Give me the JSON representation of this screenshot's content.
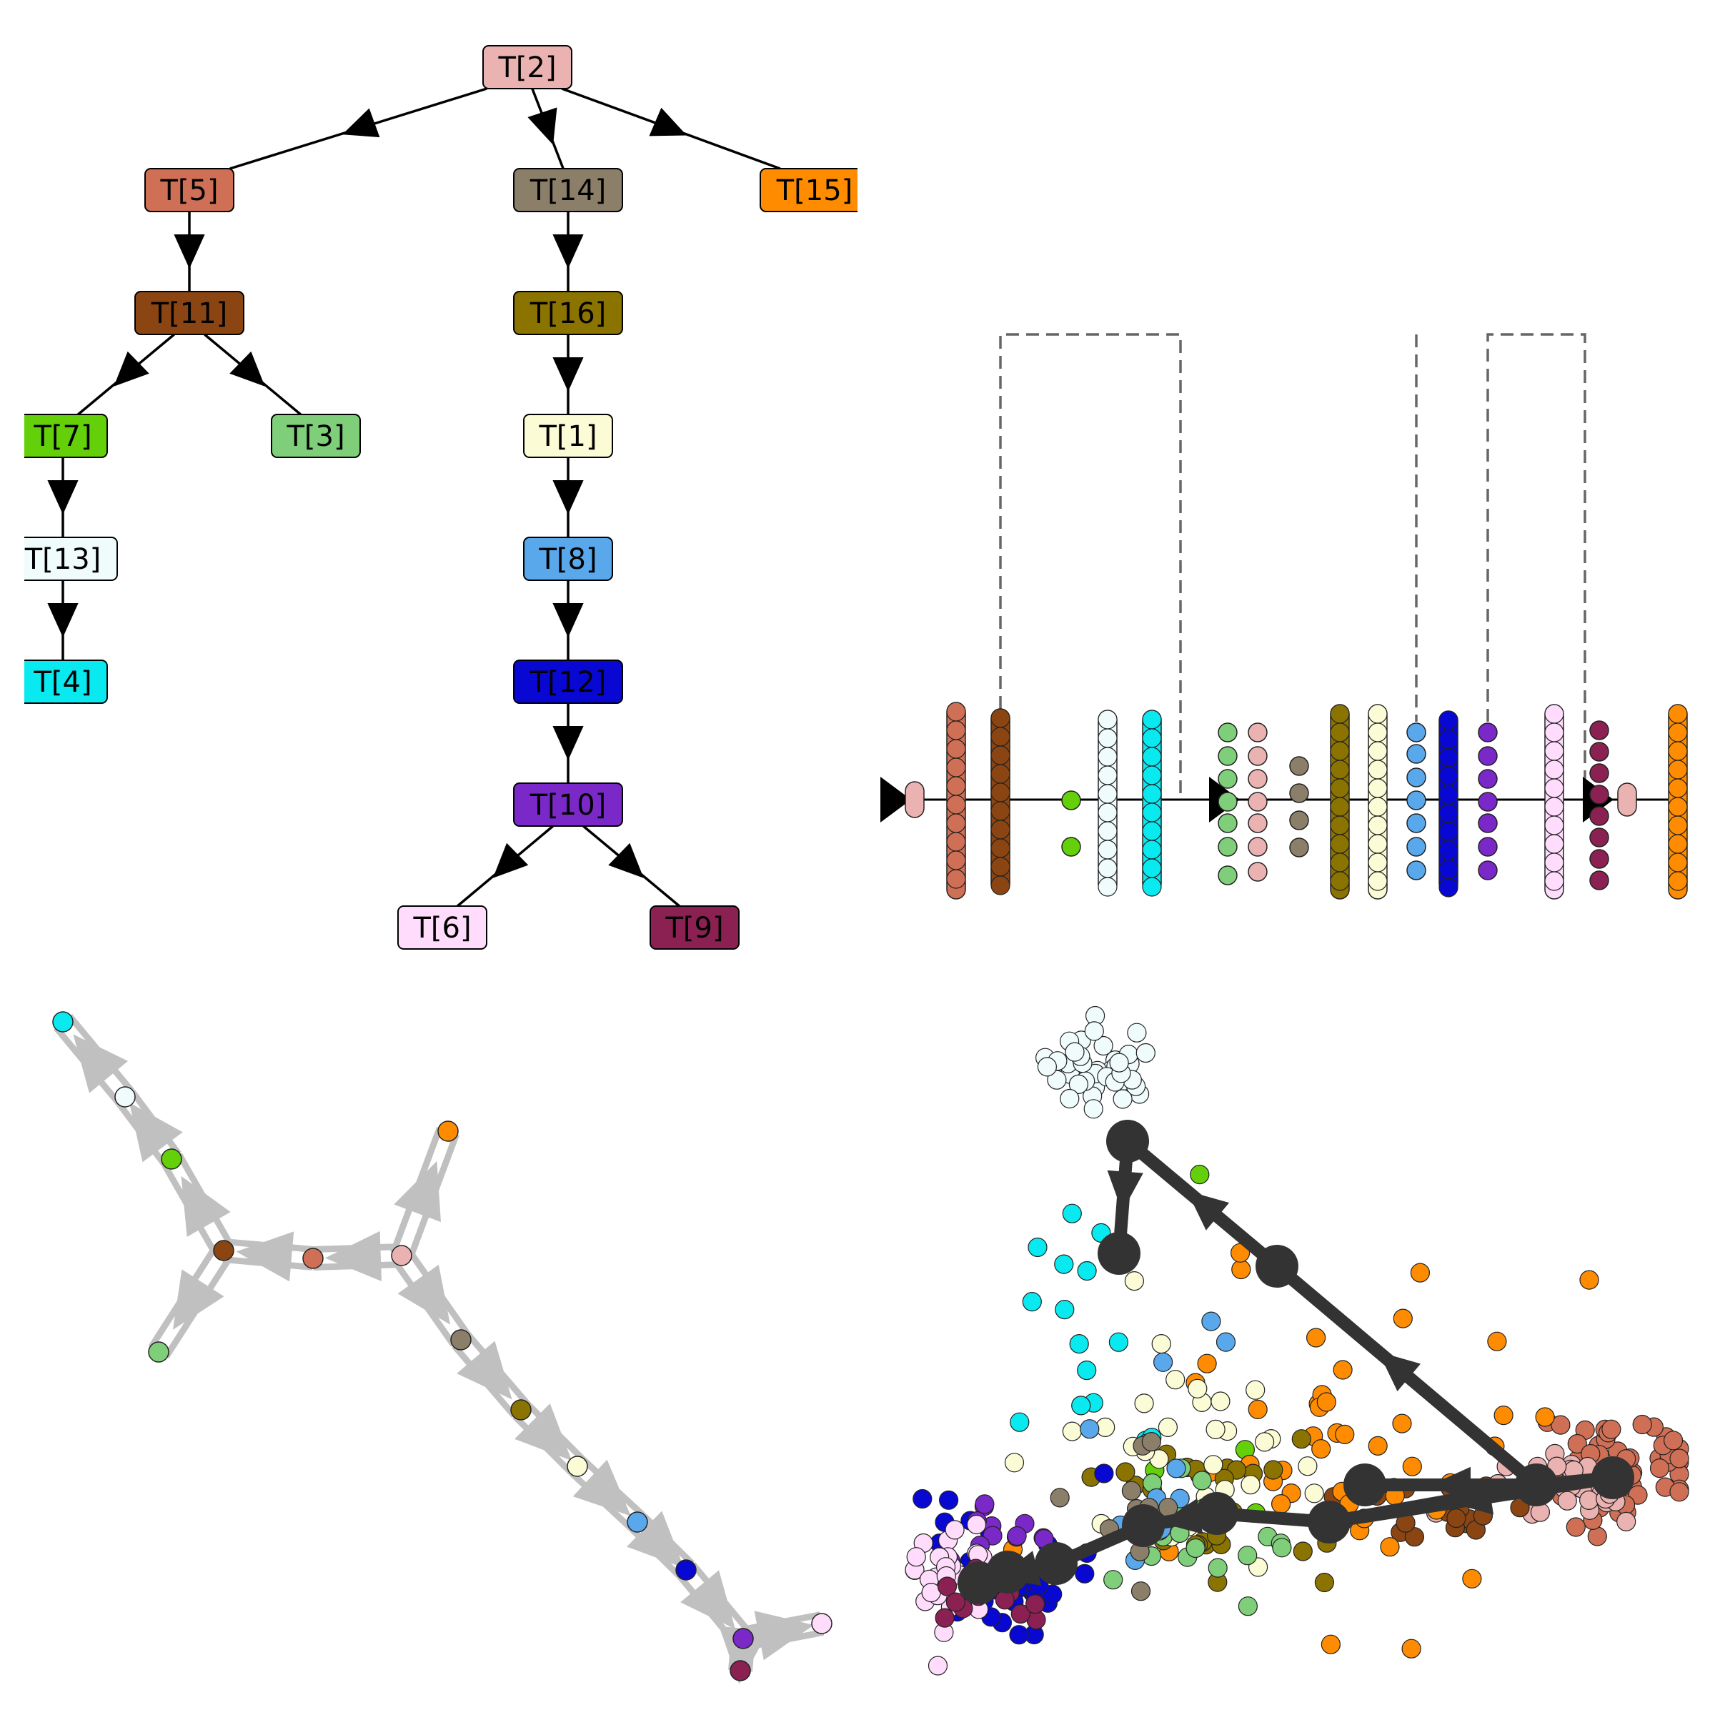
{
  "colors": {
    "T1": "#fbfbd6",
    "T2": "#eab2b0",
    "T3": "#7fcf7a",
    "T4": "#08eaf0",
    "T5": "#cf6f55",
    "T6": "#ffdcfc",
    "T7": "#64d00a",
    "T8": "#5aa8ec",
    "T9": "#8a2152",
    "T10": "#7a28c8",
    "T11": "#8b4513",
    "T12": "#0808d2",
    "T13": "#f0fbfb",
    "T14": "#8b7f6a",
    "T15": "#ff8c00",
    "T16": "#8b7300",
    "edge": "#000000",
    "trajectory_edge": "#c0c0c0",
    "graph_edge": "#333333",
    "dashed": "#666666"
  },
  "tree": {
    "nodes": [
      {
        "id": "T2",
        "label": "T[2]"
      },
      {
        "id": "T5",
        "label": "T[5]"
      },
      {
        "id": "T14",
        "label": "T[14]"
      },
      {
        "id": "T15",
        "label": "T[15]"
      },
      {
        "id": "T11",
        "label": "T[11]"
      },
      {
        "id": "T16",
        "label": "T[16]"
      },
      {
        "id": "T7",
        "label": "T[7]"
      },
      {
        "id": "T3",
        "label": "T[3]"
      },
      {
        "id": "T1",
        "label": "T[1]"
      },
      {
        "id": "T13",
        "label": "T[13]"
      },
      {
        "id": "T8",
        "label": "T[8]"
      },
      {
        "id": "T4",
        "label": "T[4]"
      },
      {
        "id": "T12",
        "label": "T[12]"
      },
      {
        "id": "T10",
        "label": "T[10]"
      },
      {
        "id": "T6",
        "label": "T[6]"
      },
      {
        "id": "T9",
        "label": "T[9]"
      }
    ],
    "edges": [
      [
        "T2",
        "T5"
      ],
      [
        "T2",
        "T14"
      ],
      [
        "T2",
        "T15"
      ],
      [
        "T5",
        "T11"
      ],
      [
        "T11",
        "T7"
      ],
      [
        "T11",
        "T3"
      ],
      [
        "T7",
        "T13"
      ],
      [
        "T13",
        "T4"
      ],
      [
        "T14",
        "T16"
      ],
      [
        "T16",
        "T1"
      ],
      [
        "T1",
        "T8"
      ],
      [
        "T8",
        "T12"
      ],
      [
        "T12",
        "T10"
      ],
      [
        "T10",
        "T6"
      ],
      [
        "T10",
        "T9"
      ]
    ]
  },
  "linear_view": {
    "columns": [
      {
        "id": "T2",
        "count": 1
      },
      {
        "id": "T5",
        "count": 9
      },
      {
        "id": "T11",
        "count": 9
      },
      {
        "id": "T7",
        "count": 2
      },
      {
        "id": "T13",
        "count": 9
      },
      {
        "id": "T4",
        "count": 9
      },
      {
        "id": "T3",
        "count": 7
      },
      {
        "id": "T2",
        "count": 6
      },
      {
        "id": "T14",
        "count": 4
      },
      {
        "id": "T16",
        "count": 9
      },
      {
        "id": "T1",
        "count": 9
      },
      {
        "id": "T8",
        "count": 7
      },
      {
        "id": "T12",
        "count": 9
      },
      {
        "id": "T10",
        "count": 7
      },
      {
        "id": "T6",
        "count": 9
      },
      {
        "id": "T9",
        "count": 7
      },
      {
        "id": "T2",
        "count": 1
      },
      {
        "id": "T15",
        "count": 9
      }
    ]
  },
  "trajectory": {
    "nodes": [
      "T4",
      "T13",
      "T7",
      "T11",
      "T3",
      "T5",
      "T2",
      "T15",
      "T14",
      "T16",
      "T1",
      "T8",
      "T12",
      "T10",
      "T6",
      "T9"
    ]
  },
  "embedding": {
    "clusters": [
      {
        "id": "T13",
        "n": 40
      },
      {
        "id": "T4",
        "n": 18
      },
      {
        "id": "T7",
        "n": 4
      },
      {
        "id": "T5",
        "n": 55
      },
      {
        "id": "T2",
        "n": 30
      },
      {
        "id": "T11",
        "n": 20
      },
      {
        "id": "T15",
        "n": 45
      },
      {
        "id": "T16",
        "n": 30
      },
      {
        "id": "T1",
        "n": 30
      },
      {
        "id": "T3",
        "n": 18
      },
      {
        "id": "T8",
        "n": 10
      },
      {
        "id": "T14",
        "n": 10
      },
      {
        "id": "T12",
        "n": 30
      },
      {
        "id": "T10",
        "n": 12
      },
      {
        "id": "T6",
        "n": 30
      },
      {
        "id": "T9",
        "n": 15
      }
    ]
  }
}
